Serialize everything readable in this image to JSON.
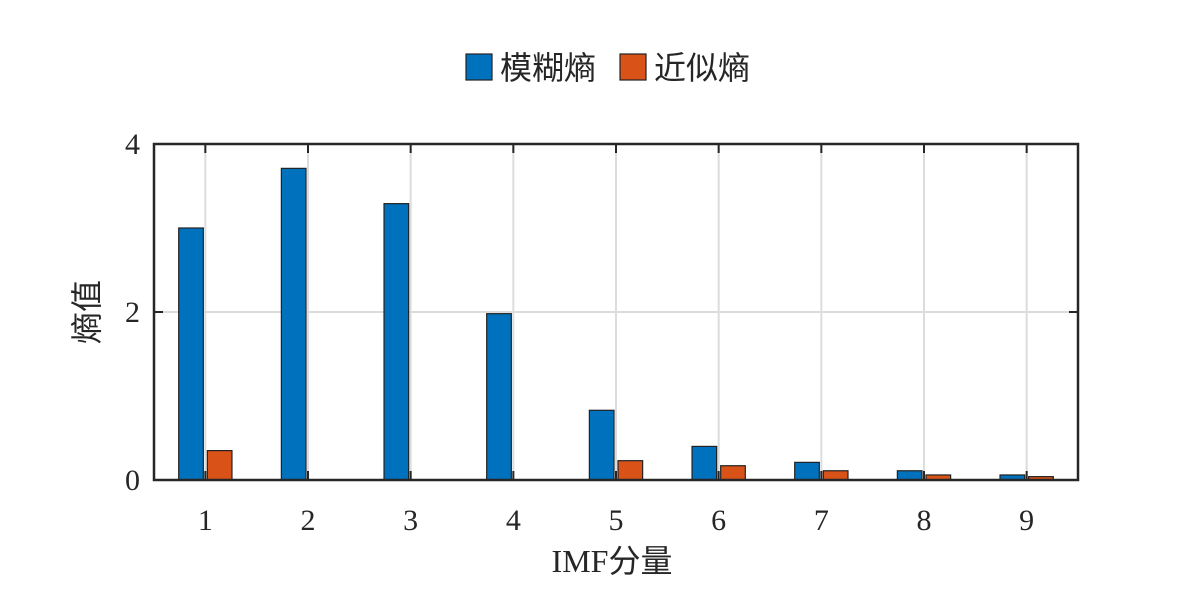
{
  "chart_data": {
    "type": "bar",
    "categories": [
      "1",
      "2",
      "3",
      "4",
      "5",
      "6",
      "7",
      "8",
      "9"
    ],
    "series": [
      {
        "name": "模糊熵",
        "color": "#0072bd",
        "values": [
          3.0,
          3.71,
          3.29,
          1.98,
          0.83,
          0.4,
          0.21,
          0.11,
          0.06
        ]
      },
      {
        "name": "近似熵",
        "color": "#d95319",
        "values": [
          0.35,
          0,
          0,
          0,
          0.23,
          0.17,
          0.11,
          0.06,
          0.04
        ]
      }
    ],
    "xlabel": "IMF分量",
    "ylabel": "熵值",
    "ylim": [
      0,
      4
    ],
    "yticks": [
      0,
      2,
      4
    ],
    "grid": true,
    "legend": "top"
  }
}
